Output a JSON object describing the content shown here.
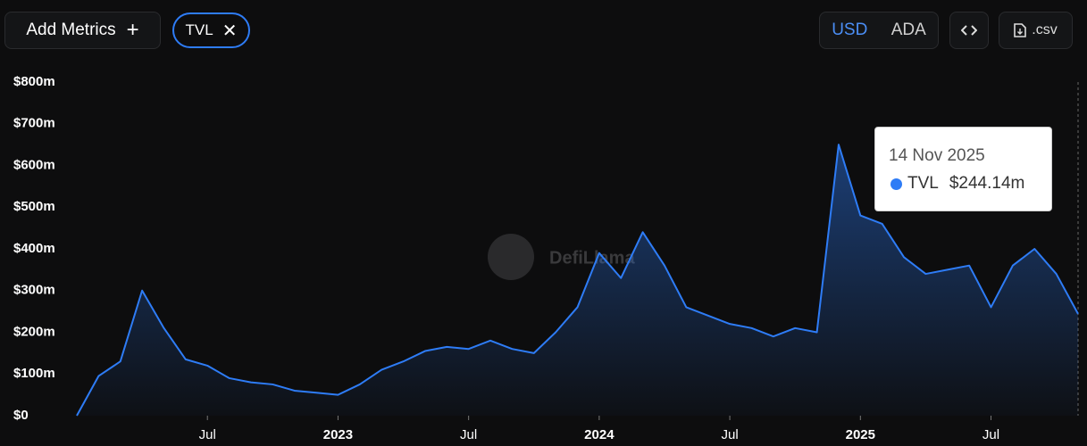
{
  "toolbar": {
    "add_metrics": "Add Metrics",
    "currencies": [
      "USD",
      "ADA"
    ],
    "csv": ".csv"
  },
  "chart_data": {
    "type": "area",
    "watermark": "DefiLlama",
    "x": [
      "2022-01",
      "2022-02",
      "2022-03",
      "2022-04",
      "2022-05",
      "2022-06",
      "2022-07",
      "2022-08",
      "2022-09",
      "2022-10",
      "2022-11",
      "2022-12",
      "2023-01",
      "2023-02",
      "2023-03",
      "2023-04",
      "2023-05",
      "2023-06",
      "2023-07",
      "2023-08",
      "2023-09",
      "2023-10",
      "2023-11",
      "2023-12",
      "2024-01",
      "2024-02",
      "2024-03",
      "2024-04",
      "2024-05",
      "2024-06",
      "2024-07",
      "2024-08",
      "2024-09",
      "2024-10",
      "2024-11",
      "2024-12",
      "2025-01",
      "2025-02",
      "2025-03",
      "2025-04",
      "2025-05",
      "2025-06",
      "2025-07",
      "2025-08",
      "2025-09",
      "2025-10",
      "2025-11"
    ],
    "series": [
      {
        "name": "TVL",
        "color": "#2e7cf6",
        "values": [
          0,
          95,
          130,
          300,
          210,
          135,
          120,
          90,
          80,
          75,
          60,
          55,
          50,
          75,
          110,
          130,
          155,
          165,
          160,
          180,
          160,
          150,
          200,
          260,
          390,
          330,
          440,
          360,
          260,
          240,
          220,
          210,
          190,
          210,
          200,
          650,
          480,
          460,
          380,
          340,
          350,
          360,
          260,
          360,
          400,
          340,
          244.14
        ]
      }
    ],
    "xlim": [
      "2022-01",
      "2025-11"
    ],
    "xticks": [
      {
        "value": "2022-07",
        "label": "Jul"
      },
      {
        "value": "2023-01",
        "label": "2023"
      },
      {
        "value": "2023-07",
        "label": "Jul"
      },
      {
        "value": "2024-01",
        "label": "2024"
      },
      {
        "value": "2024-07",
        "label": "Jul"
      },
      {
        "value": "2025-01",
        "label": "2025"
      },
      {
        "value": "2025-07",
        "label": "Jul"
      }
    ],
    "ylim": [
      0,
      800
    ],
    "yticks": [
      {
        "value": 0,
        "label": "$0"
      },
      {
        "value": 100,
        "label": "$100m"
      },
      {
        "value": 200,
        "label": "$200m"
      },
      {
        "value": 300,
        "label": "$300m"
      },
      {
        "value": 400,
        "label": "$400m"
      },
      {
        "value": 500,
        "label": "$500m"
      },
      {
        "value": 600,
        "label": "$600m"
      },
      {
        "value": 700,
        "label": "$700m"
      },
      {
        "value": 800,
        "label": "$800m"
      }
    ],
    "tooltip": {
      "date": "14 Nov 2025",
      "value_label": "$244.14m"
    }
  }
}
